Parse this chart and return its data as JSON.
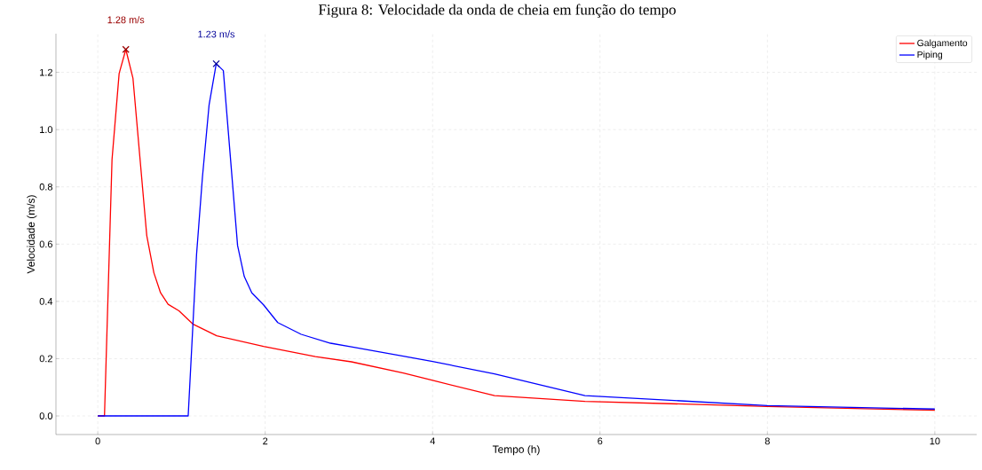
{
  "chart_data": {
    "type": "line",
    "title": "Figura 8: Velocidade da onda de cheia em função do tempo",
    "xlabel": "Tempo (h)",
    "ylabel": "Velocidade (m/s)",
    "xlim": [
      -0.5,
      10.5
    ],
    "ylim": [
      -0.065,
      1.335
    ],
    "xticks": [
      0,
      2,
      4,
      6,
      8,
      10
    ],
    "yticks": [
      {
        "value": 0,
        "label": "0.0"
      },
      {
        "value": 0.2,
        "label": "0.2"
      },
      {
        "value": 0.4,
        "label": "0.4"
      },
      {
        "value": 0.6,
        "label": "0.6"
      },
      {
        "value": 0.8,
        "label": "0.8"
      },
      {
        "value": 1.0,
        "label": "1.0"
      },
      {
        "value": 1.2,
        "label": "1.2"
      }
    ],
    "grid": true,
    "legend": "top right",
    "marker": "none",
    "line_style": "solid",
    "series": [
      {
        "name": "Galgamento",
        "color": "#ff0000",
        "x": [
          0,
          0.08,
          0.17,
          0.255,
          0.335,
          0.42,
          0.585,
          0.67,
          0.75,
          0.84,
          0.97,
          1.14,
          1.42,
          1.98,
          2.6,
          3.03,
          3.65,
          4.0,
          4.74,
          5.82,
          8.0,
          10.0
        ],
        "values": [
          0,
          0,
          0.895,
          1.196,
          1.28,
          1.18,
          0.63,
          0.5,
          0.43,
          0.39,
          0.367,
          0.32,
          0.28,
          0.243,
          0.207,
          0.189,
          0.15,
          0.124,
          0.071,
          0.051,
          0.033,
          0.02
        ]
      },
      {
        "name": "Piping",
        "color": "#0000ff",
        "x": [
          0,
          1.08,
          1.18,
          1.25,
          1.33,
          1.415,
          1.5,
          1.56,
          1.67,
          1.75,
          1.84,
          1.98,
          2.15,
          2.43,
          2.78,
          3.03,
          3.65,
          4.0,
          4.74,
          5.82,
          8.0,
          10.0
        ],
        "values": [
          0,
          0,
          0.564,
          0.833,
          1.087,
          1.23,
          1.206,
          0.99,
          0.595,
          0.487,
          0.43,
          0.388,
          0.326,
          0.285,
          0.254,
          0.241,
          0.209,
          0.19,
          0.147,
          0.071,
          0.036,
          0.024
        ]
      }
    ],
    "annotations": [
      {
        "text": "1.28 m/s",
        "x": 0.335,
        "y": 1.28
      },
      {
        "text": "1.23 m/s",
        "x": 1.415,
        "y": 1.23
      }
    ]
  }
}
